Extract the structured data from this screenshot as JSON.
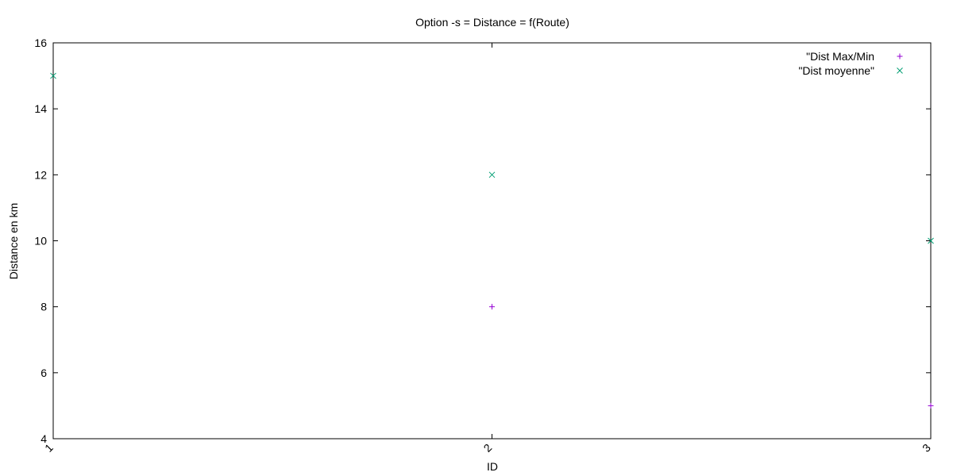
{
  "chart_data": {
    "type": "scatter",
    "title": "Option -s = Distance = f(Route)",
    "xlabel": "ID",
    "ylabel": "Distance en km",
    "xlim": [
      1,
      3
    ],
    "ylim": [
      4,
      16
    ],
    "x_ticks": [
      1,
      2,
      3
    ],
    "y_ticks": [
      4,
      6,
      8,
      10,
      12,
      14,
      16
    ],
    "grid": false,
    "legend_position": "top-right",
    "series": [
      {
        "name": "\"Dist Max/Min",
        "marker": "plus",
        "color": "#9400d3",
        "points": [
          {
            "x": 2,
            "y": 8
          },
          {
            "x": 3,
            "y": 5
          }
        ]
      },
      {
        "name": "\"Dist moyenne\"",
        "marker": "cross",
        "color": "#009e73",
        "points": [
          {
            "x": 1,
            "y": 15
          },
          {
            "x": 2,
            "y": 12
          },
          {
            "x": 3,
            "y": 10
          }
        ]
      }
    ]
  }
}
